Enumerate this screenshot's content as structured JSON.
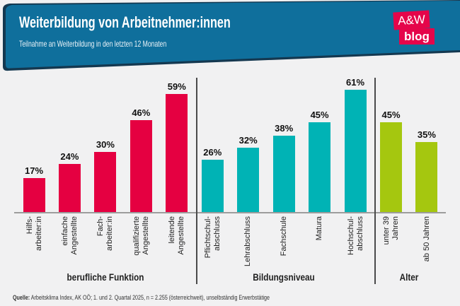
{
  "header": {
    "title": "Weiterbildung von Arbeitnehmer:innen",
    "subtitle": "Teilnahme an Weiterbildung in den letzten 12 Monaten"
  },
  "logo": {
    "top": "A&W",
    "bottom": "blog"
  },
  "footer": {
    "source_label": "Quelle:",
    "source_text": " Arbeitsklima Index, AK OÖ; 1. und 2. Quartal 2025, n = 2.255 (österreichweit), unselbständig Erwerbstätige"
  },
  "colors": {
    "background": "#f1f1f2",
    "banner": "#0f6f9c",
    "banner_edge": "#143850",
    "logo_red": "#e5054a",
    "bar_red": "#e50041",
    "bar_teal": "#00b3b5",
    "bar_green": "#a5c70f",
    "axis": "#9c9c9c",
    "divider": "#4a4a4a"
  },
  "chart_data": {
    "type": "bar",
    "title": "Weiterbildung von Arbeitnehmer:innen",
    "subtitle": "Teilnahme an Weiterbildung in den letzten 12 Monaten",
    "value_suffix": "%",
    "ylim": [
      0,
      70
    ],
    "grid": false,
    "legend": false,
    "groups": [
      {
        "label": "berufliche Funktion",
        "color": "#e50041",
        "categories": [
          [
            "Hilfs-",
            "arbeiter:in"
          ],
          [
            "einfache",
            "Angestellte"
          ],
          [
            "Fach-",
            "arbeiter:in"
          ],
          [
            "qualifizierte",
            "Angestellte"
          ],
          [
            "leitende",
            "Angestellte"
          ]
        ],
        "values": [
          17,
          24,
          30,
          46,
          59
        ]
      },
      {
        "label": "Bildungsniveau",
        "color": "#00b3b5",
        "categories": [
          [
            "Pflichtschul-",
            "abschluss"
          ],
          [
            "Lehrabschluss"
          ],
          [
            "Fachschule"
          ],
          [
            "Matura"
          ],
          [
            "Hochschul-",
            "abschluss"
          ]
        ],
        "values": [
          26,
          32,
          38,
          45,
          61
        ]
      },
      {
        "label": "Alter",
        "color": "#a5c70f",
        "categories": [
          [
            "unter 39",
            "Jahren"
          ],
          [
            "ab 50 Jahren"
          ]
        ],
        "values": [
          45,
          35
        ]
      }
    ]
  }
}
